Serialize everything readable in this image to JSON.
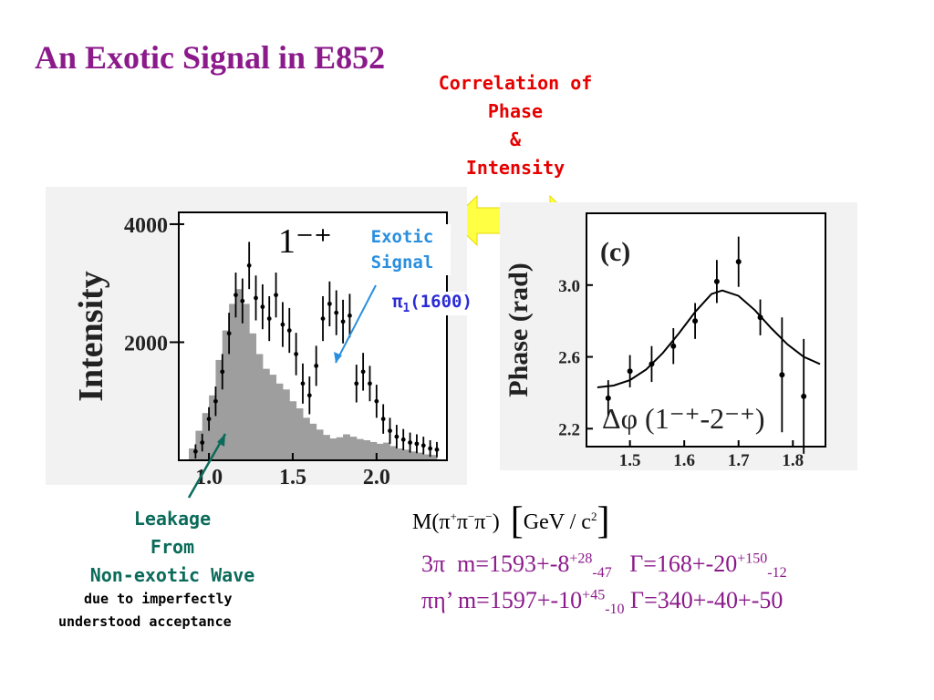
{
  "slide": {
    "title": "An Exotic Signal in E852",
    "correlation_lines": [
      "Correlation of",
      "Phase",
      "&",
      "Intensity"
    ],
    "exotic_label_lines": [
      "Exotic",
      "Signal"
    ],
    "pi1_symbol": "π",
    "pi1_sub": "1",
    "pi1_mass": "(1600)",
    "leakage_lines": [
      "Leakage",
      "From",
      "Non-exotic Wave"
    ],
    "leakage_note_lines": [
      "due to imperfectly",
      "understood acceptance"
    ],
    "mass_axis": {
      "M": "M(",
      "p1": "π",
      "s1": "+",
      "p2": "π",
      "s2": "−",
      "p3": "π",
      "s3": "−",
      "close": ")",
      "lb": "[",
      "unit": "GeV / c",
      "exp": "2",
      "rb": "]"
    },
    "result1": {
      "chan": "3π",
      "m": "m=1593+-8",
      "m_up": "+28",
      "m_dn": "-47",
      "g": "Γ=168+-20",
      "g_up": "+150",
      "g_dn": "-12"
    },
    "result2": {
      "chan": "πη’",
      "m": "m=1597+-10",
      "m_up": "+45",
      "m_dn": "-10",
      "g": "Γ=340+-40+-50"
    },
    "colors": {
      "title": "#8B1A8B",
      "correlation": "#e60000",
      "exotic": "#2a8fdf",
      "pi1": "#2a2ad6",
      "leakage": "#0b6b5a",
      "arrow": "#ffff44",
      "histogram": "#9e9e9e",
      "panel_bg": "#f2f2f2"
    }
  },
  "chart_data": [
    {
      "type": "bar",
      "title": "1⁻⁺",
      "ylabel": "Intensity",
      "xlabel": "",
      "xlim": [
        0.82,
        2.42
      ],
      "ylim": [
        0,
        4200
      ],
      "xticks": [
        1.0,
        1.5,
        2.0
      ],
      "xtick_labels": [
        "1.0",
        "1.5",
        "2.0"
      ],
      "yticks": [
        2000,
        4000
      ],
      "ytick_labels": [
        "2000",
        "4000"
      ],
      "histogram": {
        "bin_width": 0.04,
        "x_start": 0.9,
        "values": [
          200,
          500,
          800,
          1100,
          1700,
          2200,
          2650,
          2900,
          2650,
          2150,
          1800,
          1550,
          1450,
          1300,
          1200,
          1000,
          880,
          720,
          620,
          520,
          430,
          370,
          390,
          440,
          400,
          360,
          340,
          310,
          280,
          300,
          240,
          200,
          180,
          150,
          130,
          100,
          90
        ]
      },
      "points": [
        {
          "x": 0.92,
          "y": 150,
          "err": 120
        },
        {
          "x": 0.96,
          "y": 300,
          "err": 150
        },
        {
          "x": 1.0,
          "y": 700,
          "err": 200
        },
        {
          "x": 1.04,
          "y": 1000,
          "err": 250
        },
        {
          "x": 1.08,
          "y": 1500,
          "err": 300
        },
        {
          "x": 1.12,
          "y": 2150,
          "err": 350
        },
        {
          "x": 1.16,
          "y": 2800,
          "err": 380
        },
        {
          "x": 1.2,
          "y": 2700,
          "err": 380
        },
        {
          "x": 1.24,
          "y": 3300,
          "err": 400
        },
        {
          "x": 1.28,
          "y": 2750,
          "err": 380
        },
        {
          "x": 1.32,
          "y": 2600,
          "err": 380
        },
        {
          "x": 1.36,
          "y": 2400,
          "err": 380
        },
        {
          "x": 1.4,
          "y": 2800,
          "err": 380
        },
        {
          "x": 1.44,
          "y": 2300,
          "err": 380
        },
        {
          "x": 1.48,
          "y": 2200,
          "err": 380
        },
        {
          "x": 1.52,
          "y": 1800,
          "err": 360
        },
        {
          "x": 1.56,
          "y": 1300,
          "err": 340
        },
        {
          "x": 1.6,
          "y": 1100,
          "err": 320
        },
        {
          "x": 1.64,
          "y": 1600,
          "err": 340
        },
        {
          "x": 1.68,
          "y": 2400,
          "err": 380
        },
        {
          "x": 1.72,
          "y": 2650,
          "err": 380
        },
        {
          "x": 1.76,
          "y": 2500,
          "err": 380
        },
        {
          "x": 1.8,
          "y": 2350,
          "err": 370
        },
        {
          "x": 1.84,
          "y": 2450,
          "err": 370
        },
        {
          "x": 1.88,
          "y": 1300,
          "err": 320
        },
        {
          "x": 1.92,
          "y": 1500,
          "err": 320
        },
        {
          "x": 1.96,
          "y": 1300,
          "err": 300
        },
        {
          "x": 2.0,
          "y": 1000,
          "err": 280
        },
        {
          "x": 2.04,
          "y": 700,
          "err": 250
        },
        {
          "x": 2.08,
          "y": 500,
          "err": 220
        },
        {
          "x": 2.12,
          "y": 400,
          "err": 200
        },
        {
          "x": 2.16,
          "y": 350,
          "err": 180
        },
        {
          "x": 2.2,
          "y": 300,
          "err": 170
        },
        {
          "x": 2.24,
          "y": 280,
          "err": 160
        },
        {
          "x": 2.28,
          "y": 250,
          "err": 150
        },
        {
          "x": 2.32,
          "y": 200,
          "err": 140
        },
        {
          "x": 2.36,
          "y": 180,
          "err": 130
        }
      ]
    },
    {
      "type": "scatter",
      "title": "(c)",
      "annotation": "Δφ (1⁻⁺-2⁻⁺)",
      "ylabel": "Phase (rad)",
      "xlabel": "",
      "xlim": [
        1.42,
        1.86
      ],
      "ylim": [
        2.1,
        3.4
      ],
      "xticks": [
        1.5,
        1.6,
        1.7,
        1.8
      ],
      "xtick_labels": [
        "1.5",
        "1.6",
        "1.7",
        "1.8"
      ],
      "yticks": [
        2.2,
        2.6,
        3.0
      ],
      "ytick_labels": [
        "2.2",
        "2.6",
        "3.0"
      ],
      "points": [
        {
          "x": 1.46,
          "y": 2.37,
          "err": 0.1
        },
        {
          "x": 1.5,
          "y": 2.52,
          "err": 0.09
        },
        {
          "x": 1.54,
          "y": 2.56,
          "err": 0.1
        },
        {
          "x": 1.58,
          "y": 2.66,
          "err": 0.1
        },
        {
          "x": 1.62,
          "y": 2.8,
          "err": 0.1
        },
        {
          "x": 1.66,
          "y": 3.02,
          "err": 0.12
        },
        {
          "x": 1.7,
          "y": 3.13,
          "err": 0.14
        },
        {
          "x": 1.74,
          "y": 2.82,
          "err": 0.1
        },
        {
          "x": 1.78,
          "y": 2.5,
          "err": 0.32
        },
        {
          "x": 1.82,
          "y": 2.38,
          "err": 0.32
        }
      ],
      "fit_curve": [
        [
          1.44,
          2.43
        ],
        [
          1.47,
          2.44
        ],
        [
          1.5,
          2.47
        ],
        [
          1.53,
          2.53
        ],
        [
          1.56,
          2.62
        ],
        [
          1.59,
          2.73
        ],
        [
          1.62,
          2.85
        ],
        [
          1.65,
          2.95
        ],
        [
          1.67,
          2.97
        ],
        [
          1.7,
          2.94
        ],
        [
          1.73,
          2.86
        ],
        [
          1.76,
          2.76
        ],
        [
          1.79,
          2.67
        ],
        [
          1.82,
          2.6
        ],
        [
          1.85,
          2.56
        ]
      ]
    }
  ]
}
